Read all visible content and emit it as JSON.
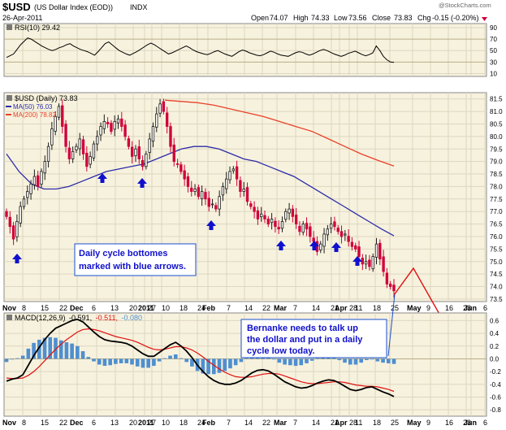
{
  "header": {
    "ticker": "$USD",
    "name": "(US Dollar Index (EOD))",
    "exchange": "INDX",
    "date": "26-Apr-2011",
    "watermark": "@StockCharts.com",
    "open_label": "Open",
    "open_value": "74.07",
    "high_label": "High",
    "high_value": "74.33",
    "low_label": "Low",
    "low_value": "73.56",
    "close_label": "Close",
    "close_value": "73.83",
    "chg_label": "Chg",
    "chg_value": "-0.15 (-0.20%)"
  },
  "colors": {
    "panel_bg": "#f7f2de",
    "grid": "#ddd6bf",
    "up_candle": "#1a1a1a",
    "down_candle": "#d0003a",
    "ma50": "#2c2ca8",
    "ma200": "#e8412a",
    "rsi_line": "#000000",
    "macd_line": "#000000",
    "signal_line": "#e01010",
    "histogram": "#4f8fd0",
    "arrow": "#1010cc",
    "projection": "#e01010",
    "note_border": "#1a4fd0",
    "note_text": "#1010cc"
  },
  "labels": {
    "rsi_legend": "RSI(10) 29.42",
    "price_legend": "$USD (Daily) 73.83",
    "ma50_legend": "MA(50) 76.03",
    "ma200_legend": "MA(200) 78.82",
    "macd_legend_name": "MACD(12,26,9)",
    "macd_legend_v1": "-0.591,",
    "macd_legend_v2": "-0.511,",
    "macd_legend_v3": "-0.080"
  },
  "annotations": {
    "cycle_note_line1": "Daily cycle bottomes",
    "cycle_note_line2": "marked with blue arrows.",
    "bernanke_line1": "Bernanke needs to talk up",
    "bernanke_line2": "the dollar and put in a daily",
    "bernanke_line3": "cycle low today."
  },
  "chart_data": {
    "type": "candlestick",
    "x_axis": {
      "tick_labels": [
        "Nov",
        "8",
        "15",
        "22",
        "Dec",
        "6",
        "13",
        "20",
        "27",
        "2011",
        "10",
        "18",
        "24",
        "Feb",
        "7",
        "14",
        "22",
        "Mar",
        "7",
        "14",
        "21",
        "28",
        "Apr",
        "11",
        "18",
        "25",
        "May",
        "9",
        "16",
        "23",
        "Jun",
        "6"
      ],
      "bold_labels": [
        "Nov",
        "Dec",
        "2011",
        "Feb",
        "Mar",
        "Apr",
        "May",
        "Jun"
      ]
    },
    "rsi_panel": {
      "indicator": "RSI(10)",
      "last": 29.42,
      "y_ticks": [
        10,
        30,
        50,
        70,
        90
      ],
      "ylim": [
        5,
        97
      ],
      "values": [
        38,
        41,
        44,
        52,
        60,
        66,
        72,
        70,
        66,
        62,
        58,
        55,
        52,
        50,
        52,
        55,
        57,
        60,
        62,
        58,
        55,
        52,
        50,
        48,
        45,
        42,
        48,
        55,
        62,
        65,
        60,
        55,
        50,
        47,
        44,
        42,
        45,
        48,
        52,
        56,
        60,
        63,
        60,
        56,
        52,
        48,
        44,
        46,
        49,
        52,
        55,
        58,
        55,
        51,
        48,
        46,
        44,
        43,
        45,
        48,
        50,
        47,
        44,
        42,
        40,
        44,
        48,
        51,
        49,
        46,
        44,
        42,
        41,
        43,
        46,
        49,
        47,
        44,
        42,
        41,
        40,
        43,
        46,
        48,
        47,
        44,
        42,
        44,
        47,
        50,
        52,
        50,
        47,
        44,
        42,
        40,
        42,
        45,
        47,
        49,
        46,
        43,
        41,
        43,
        46,
        58,
        50,
        40,
        34,
        30,
        29.42
      ]
    },
    "price_panel": {
      "series": "$USD (Daily)",
      "last": 73.83,
      "y_ticks": [
        73.5,
        74.0,
        74.5,
        75.0,
        75.5,
        76.0,
        76.5,
        77.0,
        77.5,
        78.0,
        78.5,
        79.0,
        79.5,
        80.0,
        80.5,
        81.0,
        81.5
      ],
      "ylim": [
        73.4,
        81.75
      ],
      "closes": [
        76.8,
        76.4,
        75.9,
        76.6,
        77.2,
        77.5,
        77.8,
        78.1,
        78.4,
        78.0,
        78.6,
        79.0,
        79.6,
        80.3,
        80.8,
        81.2,
        80.4,
        79.6,
        79.1,
        79.4,
        79.6,
        79.9,
        79.3,
        78.8,
        79.2,
        79.7,
        80.0,
        80.4,
        80.6,
        80.5,
        80.2,
        80.6,
        80.7,
        80.4,
        80.0,
        79.6,
        79.2,
        79.5,
        79.1,
        78.8,
        79.3,
        79.9,
        80.4,
        80.9,
        81.3,
        81.0,
        80.4,
        79.6,
        79.0,
        78.9,
        78.6,
        78.3,
        78.0,
        77.8,
        77.9,
        77.6,
        77.8,
        77.5,
        77.2,
        77.3,
        77.1,
        77.6,
        78.0,
        78.3,
        78.6,
        78.7,
        78.3,
        77.8,
        77.9,
        77.4,
        77.2,
        77.0,
        76.7,
        76.9,
        76.7,
        76.5,
        76.7,
        76.4,
        76.3,
        76.6,
        77.0,
        77.1,
        76.8,
        76.5,
        76.2,
        76.5,
        76.3,
        76.0,
        75.8,
        75.4,
        75.7,
        76.1,
        76.3,
        76.5,
        76.4,
        76.2,
        76.0,
        76.1,
        75.8,
        75.6,
        75.5,
        75.2,
        74.9,
        75.0,
        74.8,
        75.2,
        75.7,
        75.1,
        74.6,
        74.1,
        74.0,
        73.83
      ],
      "ma50": {
        "name": "MA(50)",
        "last": 76.03,
        "values": [
          79.3,
          78.6,
          78.1,
          77.9,
          77.9,
          78.0,
          78.2,
          78.4,
          78.6,
          78.7,
          78.8,
          78.9,
          79.1,
          79.3,
          79.5,
          79.6,
          79.6,
          79.5,
          79.3,
          79.1,
          79.0,
          78.8,
          78.6,
          78.4,
          78.1,
          77.8,
          77.5,
          77.2,
          76.9,
          76.6,
          76.3,
          76.03
        ]
      },
      "ma200": {
        "name": "MA(200)",
        "last": 78.82,
        "values": [
          81.45,
          81.4,
          81.35,
          81.25,
          81.1,
          80.95,
          80.8,
          80.6,
          80.4,
          80.2,
          79.9,
          79.6,
          79.3,
          79.05,
          78.82
        ]
      },
      "projection": [
        [
          74.0,
          73.6
        ],
        [
          74.55,
          74.7
        ],
        [
          75.8,
          73.6
        ]
      ],
      "cycle_bottom_arrows": 8
    },
    "macd_panel": {
      "indicator": "MACD(12,26,9)",
      "macd_last": -0.591,
      "signal_last": -0.511,
      "hist_last": -0.08,
      "y_ticks": [
        0.6,
        0.4,
        0.2,
        0.0,
        -0.2,
        -0.4,
        -0.6,
        -0.8
      ],
      "ylim": [
        -0.9,
        0.72
      ],
      "macd": [
        -0.35,
        -0.32,
        -0.3,
        -0.25,
        -0.1,
        0.05,
        0.18,
        0.3,
        0.4,
        0.48,
        0.52,
        0.56,
        0.6,
        0.62,
        0.58,
        0.5,
        0.42,
        0.35,
        0.3,
        0.28,
        0.27,
        0.26,
        0.24,
        0.2,
        0.14,
        0.08,
        0.04,
        0.04,
        0.1,
        0.16,
        0.22,
        0.26,
        0.2,
        0.12,
        0.02,
        -0.1,
        -0.2,
        -0.28,
        -0.34,
        -0.38,
        -0.4,
        -0.4,
        -0.38,
        -0.34,
        -0.28,
        -0.22,
        -0.18,
        -0.17,
        -0.19,
        -0.24,
        -0.3,
        -0.36,
        -0.4,
        -0.44,
        -0.46,
        -0.45,
        -0.42,
        -0.38,
        -0.35,
        -0.33,
        -0.34,
        -0.38,
        -0.43,
        -0.48,
        -0.5,
        -0.48,
        -0.45,
        -0.44,
        -0.48,
        -0.52,
        -0.55,
        -0.591
      ],
      "signal": [
        -0.3,
        -0.31,
        -0.31,
        -0.3,
        -0.26,
        -0.2,
        -0.12,
        -0.03,
        0.06,
        0.15,
        0.23,
        0.3,
        0.36,
        0.42,
        0.46,
        0.47,
        0.46,
        0.44,
        0.41,
        0.38,
        0.35,
        0.33,
        0.31,
        0.29,
        0.26,
        0.22,
        0.18,
        0.15,
        0.14,
        0.15,
        0.17,
        0.19,
        0.19,
        0.17,
        0.14,
        0.09,
        0.03,
        -0.04,
        -0.1,
        -0.16,
        -0.21,
        -0.25,
        -0.28,
        -0.29,
        -0.29,
        -0.28,
        -0.26,
        -0.24,
        -0.23,
        -0.23,
        -0.24,
        -0.27,
        -0.3,
        -0.33,
        -0.36,
        -0.38,
        -0.39,
        -0.39,
        -0.38,
        -0.37,
        -0.36,
        -0.36,
        -0.37,
        -0.39,
        -0.41,
        -0.42,
        -0.43,
        -0.43,
        -0.44,
        -0.46,
        -0.48,
        -0.511
      ]
    }
  }
}
